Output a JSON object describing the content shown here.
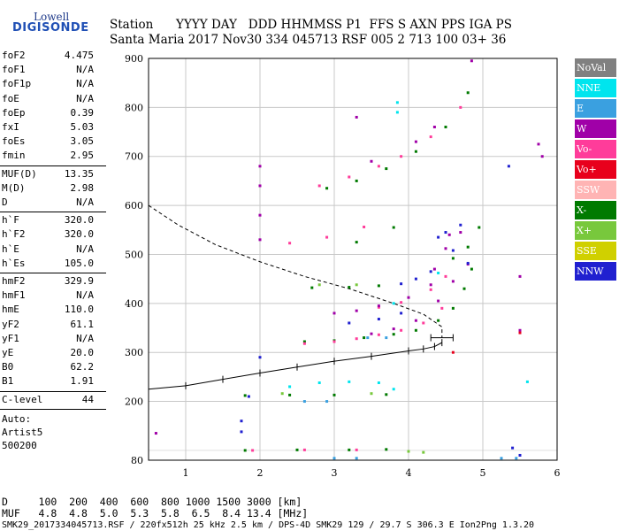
{
  "logo": {
    "top": "Lowell",
    "bottom": "DIGISONDE"
  },
  "header": {
    "line1": "Station      YYYY DAY   DDD HHMMSS P1  FFS S AXN PPS IGA PS",
    "line2": "Santa Maria 2017 Nov30 334 045713 RSF 005 2 713 100 03+ 36"
  },
  "params": {
    "group1": [
      {
        "label": "foF2",
        "value": "4.475"
      },
      {
        "label": "foF1",
        "value": "N/A"
      },
      {
        "label": "foF1p",
        "value": "N/A"
      },
      {
        "label": "foE",
        "value": "N/A"
      },
      {
        "label": "foEp",
        "value": "0.39"
      },
      {
        "label": "fxI",
        "value": "5.03"
      },
      {
        "label": "foEs",
        "value": "3.05"
      },
      {
        "label": "fmin",
        "value": "2.95"
      }
    ],
    "group2": [
      {
        "label": "MUF(D)",
        "value": "13.35"
      },
      {
        "label": "M(D)",
        "value": "2.98"
      },
      {
        "label": "D",
        "value": "N/A"
      }
    ],
    "group3": [
      {
        "label": "h`F",
        "value": "320.0"
      },
      {
        "label": "h`F2",
        "value": "320.0"
      },
      {
        "label": "h`E",
        "value": "N/A"
      },
      {
        "label": "h`Es",
        "value": "105.0"
      }
    ],
    "group4": [
      {
        "label": "hmF2",
        "value": "329.9"
      },
      {
        "label": "hmF1",
        "value": "N/A"
      },
      {
        "label": "hmE",
        "value": "110.0"
      },
      {
        "label": "yF2",
        "value": "61.1"
      },
      {
        "label": "yF1",
        "value": "N/A"
      },
      {
        "label": "yE",
        "value": "20.0"
      },
      {
        "label": "B0",
        "value": "62.2"
      },
      {
        "label": "B1",
        "value": "1.91"
      }
    ],
    "clevel": {
      "label": "C-level",
      "value": "44"
    },
    "auto": [
      "Auto:",
      "Artist5",
      "500200"
    ]
  },
  "footer": {
    "line1": "D     100  200  400  600  800 1000 1500 3000 [km]",
    "line2": "MUF   4.8  4.8  5.0  5.3  5.8  6.5  8.4 13.4 [MHz]",
    "line3": "SMK29_2017334045713.RSF / 220fx512h 25 kHz 2.5 km / DPS-4D SMK29 129 / 29.7 S 306.3 E Ion2Png 1.3.20"
  },
  "legend": [
    {
      "label": "NoVal",
      "color": "#808080"
    },
    {
      "label": "NNE",
      "color": "#00e5ee"
    },
    {
      "label": "E",
      "color": "#3aa0e0"
    },
    {
      "label": "W",
      "color": "#a000a8"
    },
    {
      "label": "Vo-",
      "color": "#ff3c9a"
    },
    {
      "label": "Vo+",
      "color": "#e8001c"
    },
    {
      "label": "SSW",
      "color": "#ffb4b4"
    },
    {
      "label": "X-",
      "color": "#007a00"
    },
    {
      "label": "X+",
      "color": "#78c83c"
    },
    {
      "label": "SSE",
      "color": "#d0d000"
    },
    {
      "label": "NNW",
      "color": "#2020d0"
    }
  ],
  "chart_data": {
    "type": "scatter",
    "xlim": [
      0.5,
      6.0
    ],
    "ylim": [
      80,
      900
    ],
    "xticks": [
      1,
      2,
      3,
      4,
      5,
      6
    ],
    "yticks": [
      80,
      200,
      300,
      400,
      500,
      600,
      700,
      800,
      900
    ],
    "grid": true,
    "series": [
      {
        "name": "X-",
        "color": "#007a00",
        "points": [
          [
            2.6,
            322
          ],
          [
            3.0,
            324
          ],
          [
            3.4,
            330
          ],
          [
            3.8,
            337
          ],
          [
            4.1,
            345
          ],
          [
            4.4,
            365
          ],
          [
            4.6,
            390
          ],
          [
            4.75,
            430
          ],
          [
            4.85,
            470
          ],
          [
            2.9,
            635
          ],
          [
            3.3,
            650
          ],
          [
            3.7,
            675
          ],
          [
            4.1,
            710
          ],
          [
            4.5,
            760
          ],
          [
            4.8,
            830
          ],
          [
            1.8,
            100
          ],
          [
            2.5,
            101
          ],
          [
            3.2,
            101
          ],
          [
            3.7,
            102
          ],
          [
            1.8,
            212
          ],
          [
            2.4,
            213
          ],
          [
            3.0,
            213
          ],
          [
            3.7,
            214
          ],
          [
            2.7,
            432
          ],
          [
            3.2,
            433
          ],
          [
            3.6,
            436
          ],
          [
            3.3,
            525
          ],
          [
            3.8,
            555
          ],
          [
            4.6,
            492
          ],
          [
            4.8,
            515
          ],
          [
            4.95,
            555
          ]
        ]
      },
      {
        "name": "Vo-",
        "color": "#ff3c9a",
        "points": [
          [
            2.6,
            318
          ],
          [
            3.0,
            322
          ],
          [
            3.3,
            328
          ],
          [
            3.6,
            336
          ],
          [
            3.9,
            345
          ],
          [
            4.2,
            360
          ],
          [
            4.45,
            390
          ],
          [
            2.8,
            640
          ],
          [
            3.2,
            658
          ],
          [
            3.6,
            680
          ],
          [
            3.9,
            700
          ],
          [
            4.3,
            740
          ],
          [
            4.7,
            800
          ],
          [
            2.4,
            523
          ],
          [
            2.9,
            535
          ],
          [
            3.4,
            556
          ],
          [
            3.6,
            392
          ],
          [
            3.9,
            402
          ],
          [
            4.3,
            428
          ],
          [
            4.5,
            455
          ],
          [
            1.9,
            100
          ],
          [
            2.6,
            101
          ],
          [
            3.3,
            101
          ]
        ]
      },
      {
        "name": "W",
        "color": "#a000a8",
        "points": [
          [
            2.0,
            530
          ],
          [
            2.0,
            580
          ],
          [
            2.0,
            640
          ],
          [
            2.0,
            680
          ],
          [
            3.5,
            338
          ],
          [
            3.8,
            348
          ],
          [
            4.1,
            365
          ],
          [
            4.4,
            405
          ],
          [
            4.6,
            445
          ],
          [
            4.8,
            480
          ],
          [
            3.0,
            380
          ],
          [
            3.3,
            385
          ],
          [
            3.6,
            395
          ],
          [
            4.0,
            412
          ],
          [
            4.3,
            438
          ],
          [
            4.35,
            470
          ],
          [
            4.5,
            512
          ],
          [
            4.55,
            540
          ],
          [
            4.7,
            545
          ],
          [
            3.5,
            690
          ],
          [
            4.1,
            730
          ],
          [
            4.35,
            760
          ],
          [
            3.3,
            780
          ],
          [
            4.85,
            895
          ],
          [
            5.75,
            725
          ],
          [
            5.8,
            700
          ],
          [
            5.5,
            455
          ],
          [
            5.5,
            345
          ],
          [
            0.6,
            135
          ]
        ]
      },
      {
        "name": "NNW",
        "color": "#2020d0",
        "points": [
          [
            3.9,
            440
          ],
          [
            4.1,
            450
          ],
          [
            4.3,
            465
          ],
          [
            4.4,
            535
          ],
          [
            4.5,
            545
          ],
          [
            4.6,
            508
          ],
          [
            4.8,
            482
          ],
          [
            1.85,
            210
          ],
          [
            1.75,
            160
          ],
          [
            1.75,
            138
          ],
          [
            3.2,
            360
          ],
          [
            3.6,
            368
          ],
          [
            3.9,
            380
          ],
          [
            5.35,
            680
          ],
          [
            4.7,
            560
          ],
          [
            5.4,
            105
          ],
          [
            5.5,
            90
          ],
          [
            2.0,
            290
          ]
        ]
      },
      {
        "name": "NNE",
        "color": "#00e5ee",
        "points": [
          [
            2.4,
            230
          ],
          [
            2.8,
            238
          ],
          [
            3.2,
            240
          ],
          [
            3.6,
            238
          ],
          [
            3.8,
            225
          ],
          [
            3.85,
            810
          ],
          [
            3.85,
            790
          ],
          [
            3.8,
            400
          ],
          [
            4.4,
            462
          ],
          [
            5.6,
            240
          ]
        ]
      },
      {
        "name": "E",
        "color": "#3aa0e0",
        "points": [
          [
            5.25,
            84
          ],
          [
            5.45,
            84
          ],
          [
            3.0,
            84
          ],
          [
            3.3,
            84
          ],
          [
            2.6,
            200
          ],
          [
            2.9,
            200
          ],
          [
            3.45,
            330
          ],
          [
            3.7,
            330
          ]
        ]
      },
      {
        "name": "X+",
        "color": "#78c83c",
        "points": [
          [
            2.8,
            438
          ],
          [
            3.3,
            438
          ],
          [
            4.0,
            98
          ],
          [
            4.2,
            96
          ],
          [
            2.3,
            216
          ],
          [
            3.5,
            216
          ]
        ]
      },
      {
        "name": "Vo+",
        "color": "#e8001c",
        "points": [
          [
            4.6,
            300
          ],
          [
            5.5,
            340
          ]
        ]
      }
    ],
    "profile": {
      "name": "true height profile",
      "points": [
        [
          0.5,
          225
        ],
        [
          1.0,
          232
        ],
        [
          1.5,
          245
        ],
        [
          2.0,
          258
        ],
        [
          2.5,
          270
        ],
        [
          3.0,
          282
        ],
        [
          3.5,
          292
        ],
        [
          4.0,
          303
        ],
        [
          4.2,
          307
        ],
        [
          4.35,
          312
        ],
        [
          4.45,
          320
        ]
      ],
      "reflection": {
        "x": 4.45,
        "y": 330,
        "xerr": 0.15
      }
    },
    "extrapolation": {
      "points": [
        [
          0.5,
          600
        ],
        [
          0.9,
          560
        ],
        [
          1.4,
          520
        ],
        [
          2.0,
          485
        ],
        [
          2.6,
          455
        ],
        [
          3.2,
          430
        ],
        [
          3.8,
          400
        ],
        [
          4.2,
          378
        ],
        [
          4.45,
          352
        ],
        [
          4.45,
          330
        ]
      ]
    }
  }
}
